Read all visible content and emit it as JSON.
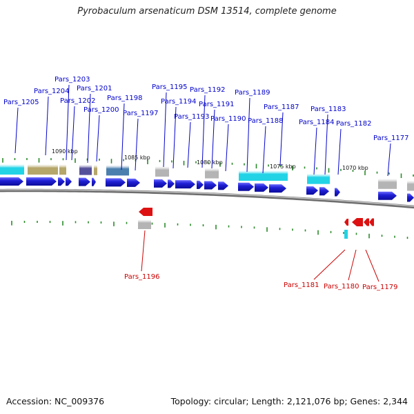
{
  "title": "Pyrobaculum arsenaticum DSM 13514, complete genome",
  "footer": {
    "accession": "Accession: NC_009376",
    "summary": "Topology: circular; Length: 2,121,076 bp; Genes: 2,344"
  },
  "colors": {
    "forward_label": "#0000cc",
    "reverse_label": "#cc0000",
    "forward_gene": "#1f1fd6",
    "reverse_gene": "#dd1111",
    "backbone": "#8a8a8a",
    "tick": "#2a8a2a",
    "cog_cyan": "#22d3e6",
    "cog_khaki": "#b5a66a",
    "cog_purple": "#55509a",
    "cog_steel": "#4a7fae",
    "cog_gray": "#b4b4b4"
  },
  "scale_labels": [
    "1090 kbp",
    "1085 kbp",
    "1080 kbp",
    "1075 kbp",
    "1070 kbp"
  ],
  "forward_gene_labels": [
    "Pars_1205",
    "Pars_1204",
    "Pars_1203",
    "Pars_1202",
    "Pars_1201",
    "Pars_1200",
    "Pars_1198",
    "Pars_1197",
    "Pars_1195",
    "Pars_1194",
    "Pars_1193",
    "Pars_1192",
    "Pars_1191",
    "Pars_1190",
    "Pars_1189",
    "Pars_1188",
    "Pars_1187",
    "Pars_1184",
    "Pars_1183",
    "Pars_1182",
    "Pars_1177"
  ],
  "reverse_gene_labels": [
    "Pars_1196",
    "Pars_1181",
    "Pars_1180",
    "Pars_1179"
  ]
}
